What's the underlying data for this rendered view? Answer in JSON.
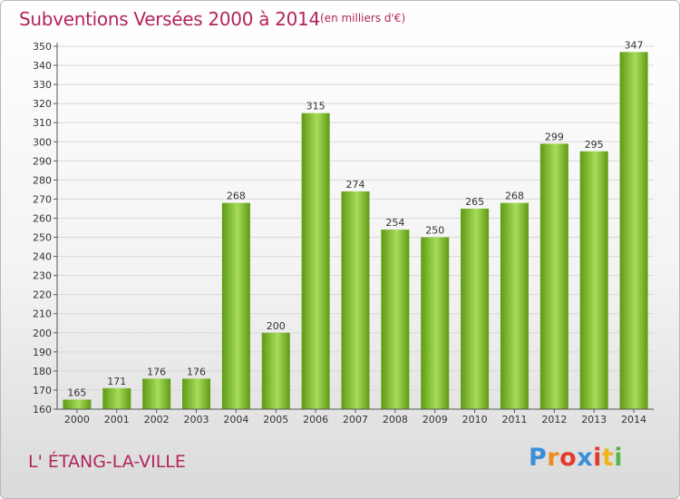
{
  "title": "Subventions Versées 2000 à 2014",
  "unit_note": "(en milliers d'€)",
  "commune": "L' ÉTANG-LA-VILLE",
  "logo": {
    "text": "Proxiti",
    "letter_colors": [
      "#3a8fd8",
      "#f08c1e",
      "#e23a2e",
      "#3a8fd8",
      "#e23a2e",
      "#f0b41e",
      "#5ab44a"
    ]
  },
  "colors": {
    "title": "#b2245c",
    "bar_light": "#a8dc5a",
    "bar_dark": "#5e9a14",
    "axis": "#555555",
    "grid": "#d8d8d8"
  },
  "chart_data": {
    "type": "bar",
    "categories": [
      "2000",
      "2001",
      "2002",
      "2003",
      "2004",
      "2005",
      "2006",
      "2007",
      "2008",
      "2009",
      "2010",
      "2011",
      "2012",
      "2013",
      "2014"
    ],
    "values": [
      165,
      171,
      176,
      176,
      268,
      200,
      315,
      274,
      254,
      250,
      265,
      268,
      299,
      295,
      347
    ],
    "ylim": [
      160,
      350
    ],
    "ytick_step": 10,
    "grid": true,
    "legend": "none"
  }
}
